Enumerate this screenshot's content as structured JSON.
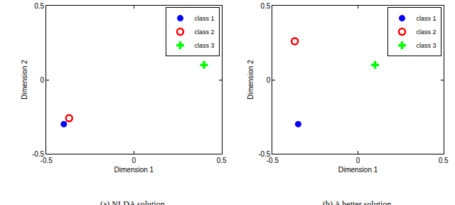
{
  "chart_data": [
    {
      "type": "scatter",
      "title": "(a) NLDA solution.",
      "x_label": "Dimension 1",
      "y_label": "Dimension 2",
      "xlim": [
        -0.5,
        0.5
      ],
      "xticks": [
        -0.5,
        0,
        0.5
      ],
      "ylim": [
        -0.5,
        0.5
      ],
      "yticks": [
        -0.5,
        0,
        0.5
      ],
      "grid": false,
      "legend": "upper right",
      "series": [
        {
          "name": "class 1",
          "color": "#0000ff",
          "marker": "circle",
          "x": [
            -0.4
          ],
          "values": [
            -0.3
          ]
        },
        {
          "name": "class 2",
          "color": "#ff0000",
          "marker": "circle-open",
          "x": [
            -0.37
          ],
          "values": [
            -0.26
          ]
        },
        {
          "name": "class 3",
          "color": "#00ff00",
          "marker": "cross",
          "x": [
            0.4
          ],
          "values": [
            0.1
          ]
        }
      ]
    },
    {
      "type": "scatter",
      "title": "(b) A better solution.",
      "x_label": "Dimension 1",
      "y_label": "Dimension 2",
      "xlim": [
        -0.5,
        0.5
      ],
      "xticks": [
        -0.5,
        0,
        0.5
      ],
      "ylim": [
        -0.5,
        0.5
      ],
      "yticks": [
        -0.5,
        0,
        0.5
      ],
      "grid": false,
      "legend": "upper right",
      "series": [
        {
          "name": "class 1",
          "color": "#0000ff",
          "marker": "circle",
          "x": [
            -0.35
          ],
          "values": [
            -0.3
          ]
        },
        {
          "name": "class 2",
          "color": "#ff0000",
          "marker": "circle-open",
          "x": [
            -0.37
          ],
          "values": [
            0.26
          ]
        },
        {
          "name": "class 3",
          "color": "#00ff00",
          "marker": "cross",
          "x": [
            0.1
          ],
          "values": [
            0.1
          ]
        }
      ]
    }
  ]
}
